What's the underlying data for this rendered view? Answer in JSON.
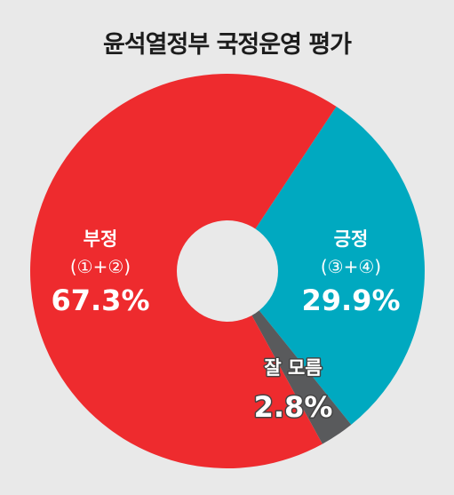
{
  "colors": {
    "negative": "#ee2b2e",
    "positive": "#00a9c0",
    "unknown": "#595a5c",
    "hole": "#e9e9e9"
  },
  "chart_data": {
    "type": "pie",
    "title": "윤석열정부 국정운영 평가",
    "slices": [
      {
        "key": "positive",
        "name": "긍정",
        "sub": "(③+④)",
        "value": 29.9,
        "value_label": "29.9%",
        "color": "#00a9c0"
      },
      {
        "key": "unknown",
        "name": "잘 모름",
        "sub": "",
        "value": 2.8,
        "value_label": "2.8%",
        "color": "#595a5c"
      },
      {
        "key": "negative",
        "name": "부정",
        "sub": "(①+②)",
        "value": 67.3,
        "value_label": "67.3%",
        "color": "#ee2b2e"
      }
    ]
  }
}
